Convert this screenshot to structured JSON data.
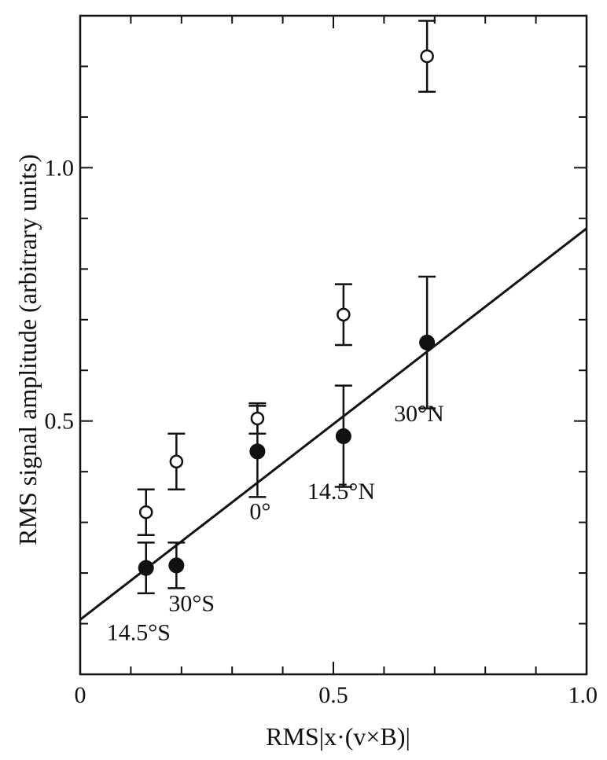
{
  "chart_data": {
    "type": "scatter",
    "title": "",
    "xlabel": "RMS|x·(v×B)|",
    "ylabel": "RMS signal amplitude (arbitrary units)",
    "xlim": [
      0,
      1.0
    ],
    "ylim": [
      0,
      1.3
    ],
    "x_ticks": [
      {
        "value": 0,
        "label": "0"
      },
      {
        "value": 0.5,
        "label": "0.5"
      },
      {
        "value": 1.0,
        "label": "1.0"
      }
    ],
    "y_ticks": [
      {
        "value": 0.5,
        "label": "0.5"
      },
      {
        "value": 1.0,
        "label": "1.0"
      }
    ],
    "x_minor_step": 0.1,
    "y_minor_step": 0.1,
    "grid": false,
    "series": [
      {
        "marker": "filled-circle",
        "points": [
          {
            "x": 0.13,
            "y": 0.21,
            "err": 0.05
          },
          {
            "x": 0.19,
            "y": 0.215,
            "err": 0.045
          },
          {
            "x": 0.35,
            "y": 0.44,
            "err": 0.09
          },
          {
            "x": 0.52,
            "y": 0.47,
            "err": 0.1
          },
          {
            "x": 0.685,
            "y": 0.655,
            "err": 0.13
          }
        ]
      },
      {
        "marker": "open-circle",
        "points": [
          {
            "x": 0.13,
            "y": 0.32,
            "err": 0.045
          },
          {
            "x": 0.19,
            "y": 0.42,
            "err": 0.055
          },
          {
            "x": 0.35,
            "y": 0.505,
            "err": 0.03
          },
          {
            "x": 0.52,
            "y": 0.71,
            "err": 0.06
          },
          {
            "x": 0.685,
            "y": 1.22,
            "err": 0.07
          }
        ]
      }
    ],
    "fit_line": {
      "x1": 0,
      "y1": 0.108,
      "x2": 1.0,
      "y2": 0.88
    },
    "annotations": [
      {
        "text": "14.5°S",
        "x": 0.13,
        "y": 0.21
      },
      {
        "text": "30°S",
        "x": 0.19,
        "y": 0.215
      },
      {
        "text": "0°",
        "x": 0.35,
        "y": 0.44
      },
      {
        "text": "14.5°N",
        "x": 0.52,
        "y": 0.47
      },
      {
        "text": "30°N",
        "x": 0.685,
        "y": 0.655
      }
    ]
  }
}
